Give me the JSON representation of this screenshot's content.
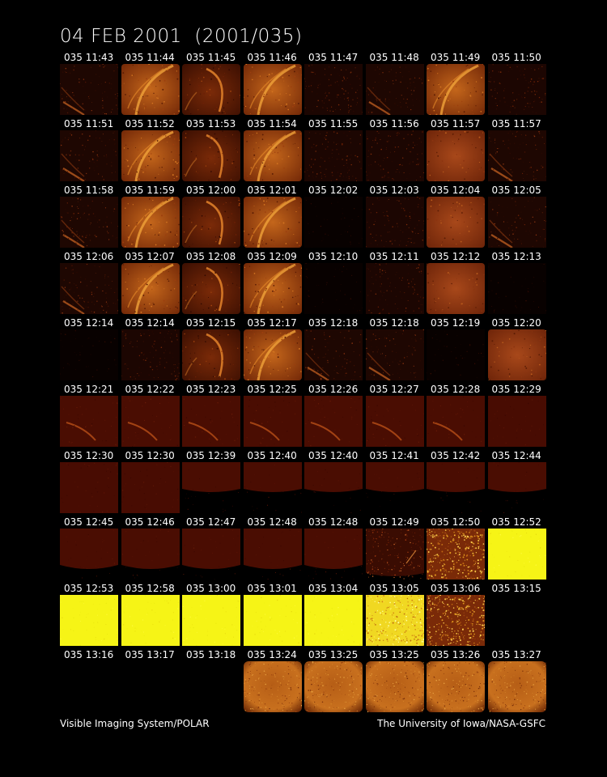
{
  "title": "04 FEB 2001  (2001/035)",
  "footer": {
    "left": "Visible Imaging System/POLAR",
    "right": "The University of Iowa/NASA-GSFC"
  },
  "rows": [
    {
      "frames": [
        {
          "label": "035 11:43",
          "style": "dim-arc"
        },
        {
          "label": "035 11:44",
          "style": "bright-arc"
        },
        {
          "label": "035 11:45",
          "style": "arc-right"
        },
        {
          "label": "035 11:46",
          "style": "bright-arc"
        },
        {
          "label": "035 11:47",
          "style": "dim"
        },
        {
          "label": "035 11:48",
          "style": "dim-arc"
        },
        {
          "label": "035 11:49",
          "style": "bright-arc"
        },
        {
          "label": "035 11:50",
          "style": "dim"
        }
      ]
    },
    {
      "frames": [
        {
          "label": "035 11:51",
          "style": "dim-arc"
        },
        {
          "label": "035 11:52",
          "style": "bright-arc"
        },
        {
          "label": "035 11:53",
          "style": "arc-right"
        },
        {
          "label": "035 11:54",
          "style": "bright-arc"
        },
        {
          "label": "035 11:55",
          "style": "dim"
        },
        {
          "label": "035 11:56",
          "style": "dim"
        },
        {
          "label": "035 11:57",
          "style": "bright-flat"
        },
        {
          "label": "035 11:57",
          "style": "dim-arc"
        }
      ]
    },
    {
      "frames": [
        {
          "label": "035 11:58",
          "style": "dim-arc"
        },
        {
          "label": "035 11:59",
          "style": "bright-arc"
        },
        {
          "label": "035 12:00",
          "style": "arc-right"
        },
        {
          "label": "035 12:01",
          "style": "bright-arc"
        },
        {
          "label": "035 12:02",
          "style": "dark"
        },
        {
          "label": "035 12:03",
          "style": "dim"
        },
        {
          "label": "035 12:04",
          "style": "bright-flat"
        },
        {
          "label": "035 12:05",
          "style": "dim-arc"
        }
      ]
    },
    {
      "frames": [
        {
          "label": "035 12:06",
          "style": "dim-arc"
        },
        {
          "label": "035 12:07",
          "style": "bright-arc"
        },
        {
          "label": "035 12:08",
          "style": "arc-right"
        },
        {
          "label": "035 12:09",
          "style": "bright-arc"
        },
        {
          "label": "035 12:10",
          "style": "dark"
        },
        {
          "label": "035 12:11",
          "style": "dim"
        },
        {
          "label": "035 12:12",
          "style": "bright-flat"
        },
        {
          "label": "035 12:13",
          "style": "dark"
        }
      ]
    },
    {
      "frames": [
        {
          "label": "035 12:14",
          "style": "dark"
        },
        {
          "label": "035 12:14",
          "style": "dim"
        },
        {
          "label": "035 12:15",
          "style": "arc-right"
        },
        {
          "label": "035 12:17",
          "style": "bright-arc"
        },
        {
          "label": "035 12:18",
          "style": "dim-arc"
        },
        {
          "label": "035 12:18",
          "style": "dim-arc"
        },
        {
          "label": "035 12:19",
          "style": "dark"
        },
        {
          "label": "035 12:20",
          "style": "bright-flat"
        }
      ]
    },
    {
      "frames": [
        {
          "label": "035 12:21",
          "style": "red-arc"
        },
        {
          "label": "035 12:22",
          "style": "red-arc"
        },
        {
          "label": "035 12:23",
          "style": "red-arc"
        },
        {
          "label": "035 12:25",
          "style": "red-arc"
        },
        {
          "label": "035 12:26",
          "style": "red-arc"
        },
        {
          "label": "035 12:27",
          "style": "red-arc"
        },
        {
          "label": "035 12:28",
          "style": "red-arc"
        },
        {
          "label": "035 12:29",
          "style": "red-flat"
        }
      ]
    },
    {
      "frames": [
        {
          "label": "035 12:30",
          "style": "red-flat"
        },
        {
          "label": "035 12:30",
          "style": "red-flat"
        },
        {
          "label": "035 12:39",
          "style": "red-band"
        },
        {
          "label": "035 12:40",
          "style": "red-band"
        },
        {
          "label": "035 12:40",
          "style": "red-band"
        },
        {
          "label": "035 12:41",
          "style": "red-band"
        },
        {
          "label": "035 12:42",
          "style": "red-band"
        },
        {
          "label": "035 12:44",
          "style": "red-band"
        }
      ]
    },
    {
      "frames": [
        {
          "label": "035 12:45",
          "style": "red-curve"
        },
        {
          "label": "035 12:46",
          "style": "red-curve"
        },
        {
          "label": "035 12:47",
          "style": "red-curve"
        },
        {
          "label": "035 12:48",
          "style": "red-curve"
        },
        {
          "label": "035 12:48",
          "style": "red-curve"
        },
        {
          "label": "035 12:49",
          "style": "speckle-dark"
        },
        {
          "label": "035 12:50",
          "style": "speckle-orange"
        },
        {
          "label": "035 12:52",
          "style": "yellow"
        }
      ]
    },
    {
      "frames": [
        {
          "label": "035 12:53",
          "style": "yellow"
        },
        {
          "label": "035 12:58",
          "style": "yellow"
        },
        {
          "label": "035 13:00",
          "style": "yellow"
        },
        {
          "label": "035 13:01",
          "style": "yellow"
        },
        {
          "label": "035 13:04",
          "style": "yellow"
        },
        {
          "label": "035 13:05",
          "style": "speckle-yellow"
        },
        {
          "label": "035 13:06",
          "style": "speckle-orange"
        },
        {
          "label": "035 13:15",
          "style": "black"
        }
      ]
    },
    {
      "frames": [
        {
          "label": "035 13:16",
          "style": "black"
        },
        {
          "label": "035 13:17",
          "style": "black"
        },
        {
          "label": "035 13:18",
          "style": "black"
        },
        {
          "label": "035 13:24",
          "style": "orange-glow"
        },
        {
          "label": "035 13:25",
          "style": "orange-glow"
        },
        {
          "label": "035 13:25",
          "style": "orange-glow"
        },
        {
          "label": "035 13:26",
          "style": "orange-glow"
        },
        {
          "label": "035 13:27",
          "style": "orange-glow"
        }
      ]
    }
  ]
}
